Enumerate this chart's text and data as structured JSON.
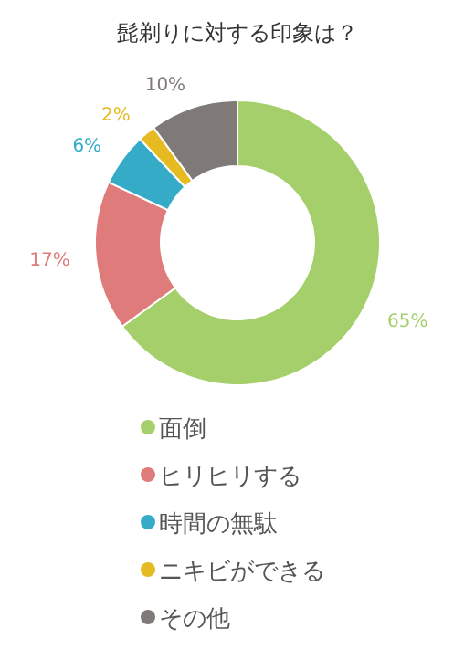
{
  "chart_data": {
    "type": "donut",
    "title": "髭剃りに対する印象は？",
    "categories": [
      "面倒",
      "ヒリヒリする",
      "時間の無駄",
      "ニキビができる",
      "その他"
    ],
    "values": [
      65,
      17,
      6,
      2,
      10
    ],
    "colors": [
      "#a5cf6a",
      "#e07b7b",
      "#35abc8",
      "#e6bb22",
      "#7f7978"
    ],
    "value_labels": [
      "65%",
      "17%",
      "6%",
      "2%",
      "10%"
    ],
    "legend": "bottom"
  }
}
